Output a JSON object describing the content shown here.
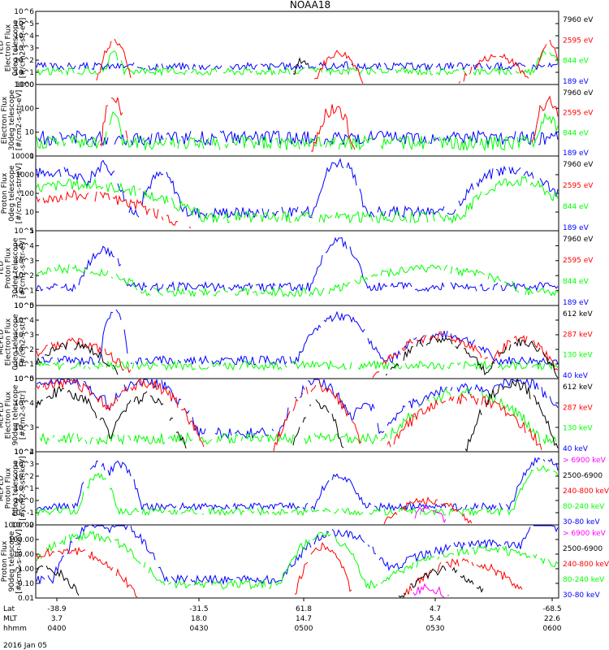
{
  "title": "NOAA18",
  "date_label": "2016 Jan 05",
  "colors": {
    "black": "#000000",
    "red": "#ff0000",
    "green": "#00ff00",
    "blue": "#0000ff",
    "magenta": "#ff00ff"
  },
  "xaxis": {
    "row_labels": [
      "Lat",
      "MLT",
      "hhmm"
    ],
    "ticks": [
      {
        "lat": "-38.9",
        "mlt": "3.7",
        "hhmm": "0400"
      },
      {
        "lat": "-31.5",
        "mlt": "18.0",
        "hhmm": "0430"
      },
      {
        "lat": "61.8",
        "mlt": "14.7",
        "hhmm": "0500"
      },
      {
        "lat": "4.7",
        "mlt": "5.4",
        "hhmm": "0530"
      },
      {
        "lat": "-68.5",
        "mlt": "22.6",
        "hhmm": "0600"
      }
    ]
  },
  "chart_data": [
    {
      "type": "line",
      "ylog": true,
      "ylim": [
        1,
        1000000
      ],
      "yticks": [
        "10^0",
        "10^1",
        "10^2",
        "10^3",
        "10^4",
        "10^5",
        "10^6"
      ],
      "ylabel": [
        "TED",
        "Electron Flux",
        "0deg telescope",
        "[#/cm2-s-str-eV]"
      ],
      "legend": [
        {
          "name": "7960 eV",
          "color": "black"
        },
        {
          "name": "2595 eV",
          "color": "red"
        },
        {
          "name": "844 eV",
          "color": "green"
        },
        {
          "name": "189 eV",
          "color": "blue"
        }
      ],
      "events": [
        {
          "series": "black",
          "center": 0.51,
          "width": 0.01,
          "peak": 100
        },
        {
          "series": "red",
          "center": 0.15,
          "width": 0.012,
          "peak": 3000
        },
        {
          "series": "green",
          "center": 0.15,
          "width": 0.01,
          "peak": 300
        },
        {
          "series": "red",
          "center": 0.58,
          "width": 0.02,
          "peak": 400
        },
        {
          "series": "red",
          "center": 0.88,
          "width": 0.03,
          "peak": 200
        },
        {
          "series": "red",
          "center": 0.98,
          "width": 0.01,
          "peak": 3000
        },
        {
          "series": "green",
          "center": 0.98,
          "width": 0.015,
          "peak": 500
        },
        {
          "series": "blue",
          "center": 0.59,
          "width": 0.01,
          "peak": 50
        }
      ]
    },
    {
      "type": "line",
      "ylog": true,
      "ylim": [
        1,
        1000
      ],
      "yticks": [
        "1",
        "10",
        "100",
        "1000"
      ],
      "ylabel": [
        "Electron Flux",
        "30deg telescope",
        "[#/cm2-s-str-eV]"
      ],
      "legend": [
        {
          "name": "7960 eV",
          "color": "black"
        },
        {
          "name": "2595 eV",
          "color": "red"
        },
        {
          "name": "844 eV",
          "color": "green"
        },
        {
          "name": "189 eV",
          "color": "blue"
        }
      ],
      "events": [
        {
          "series": "red",
          "center": 0.15,
          "width": 0.012,
          "peak": 300
        },
        {
          "series": "green",
          "center": 0.15,
          "width": 0.01,
          "peak": 60
        },
        {
          "series": "red",
          "center": 0.57,
          "width": 0.02,
          "peak": 100
        },
        {
          "series": "red",
          "center": 0.98,
          "width": 0.015,
          "peak": 200
        },
        {
          "series": "green",
          "center": 0.98,
          "width": 0.015,
          "peak": 50
        }
      ]
    },
    {
      "type": "line",
      "ylog": true,
      "ylim": [
        1,
        10000
      ],
      "yticks": [
        "1",
        "10",
        "100",
        "1000",
        "10000"
      ],
      "ylabel": [
        "Proton Flux",
        "0deg telescope",
        "[#/cm2-s-str-eV]"
      ],
      "legend": [
        {
          "name": "7960 eV",
          "color": "black"
        },
        {
          "name": "2595 eV",
          "color": "red"
        },
        {
          "name": "844 eV",
          "color": "green"
        },
        {
          "name": "189 eV",
          "color": "blue"
        }
      ],
      "events": [
        {
          "series": "blue",
          "center": 0.03,
          "width": 0.06,
          "peak": 1500
        },
        {
          "series": "blue",
          "center": 0.13,
          "width": 0.02,
          "peak": 3000
        },
        {
          "series": "blue",
          "center": 0.24,
          "width": 0.02,
          "peak": 1000
        },
        {
          "series": "blue",
          "center": 0.58,
          "width": 0.02,
          "peak": 5000
        },
        {
          "series": "blue",
          "center": 0.91,
          "width": 0.05,
          "peak": 2000
        },
        {
          "series": "green",
          "center": 0.08,
          "width": 0.12,
          "peak": 300
        },
        {
          "series": "green",
          "center": 0.92,
          "width": 0.05,
          "peak": 500
        },
        {
          "series": "red",
          "center": 0.08,
          "width": 0.1,
          "peak": 80
        }
      ]
    },
    {
      "type": "line",
      "ylog": true,
      "ylim": [
        1,
        100000
      ],
      "yticks": [
        "10^0",
        "10^1",
        "10^2",
        "10^3",
        "10^4",
        "10^5"
      ],
      "ylabel": [
        "TED",
        "Proton Flux",
        "30deg telescope",
        "[#/cm2-s-str-eV]"
      ],
      "legend": [
        {
          "name": "7960 eV",
          "color": "black"
        },
        {
          "name": "2595 eV",
          "color": "red"
        },
        {
          "name": "844 eV",
          "color": "green"
        },
        {
          "name": "189 eV",
          "color": "blue"
        }
      ],
      "events": [
        {
          "series": "blue",
          "center": 0.13,
          "width": 0.02,
          "peak": 5000
        },
        {
          "series": "blue",
          "center": 0.58,
          "width": 0.02,
          "peak": 20000
        },
        {
          "series": "green",
          "center": 0.06,
          "width": 0.08,
          "peak": 300
        },
        {
          "series": "green",
          "center": 0.75,
          "width": 0.1,
          "peak": 300
        }
      ]
    },
    {
      "type": "line",
      "ylog": true,
      "ylim": [
        1,
        100000
      ],
      "yticks": [
        "10^0",
        "10^1",
        "10^2",
        "10^3",
        "10^4",
        "10^5"
      ],
      "ylabel": [
        "MEPED",
        "Electron Flux",
        "0deg telescope",
        "[#/cm2-s-str]"
      ],
      "legend": [
        {
          "name": "612 keV",
          "color": "black"
        },
        {
          "name": "287 keV",
          "color": "red"
        },
        {
          "name": "130 keV",
          "color": "green"
        },
        {
          "name": "40 keV",
          "color": "blue"
        }
      ],
      "events": [
        {
          "series": "black",
          "center": 0.07,
          "width": 0.04,
          "peak": 200
        },
        {
          "series": "red",
          "center": 0.07,
          "width": 0.05,
          "peak": 300
        },
        {
          "series": "blue",
          "center": 0.15,
          "width": 0.01,
          "peak": 50000
        },
        {
          "series": "blue",
          "center": 0.58,
          "width": 0.03,
          "peak": 20000
        },
        {
          "series": "black",
          "center": 0.77,
          "width": 0.04,
          "peak": 500
        },
        {
          "series": "red",
          "center": 0.77,
          "width": 0.05,
          "peak": 800
        },
        {
          "series": "blue",
          "center": 0.78,
          "width": 0.05,
          "peak": 1000
        },
        {
          "series": "black",
          "center": 0.93,
          "width": 0.03,
          "peak": 300
        },
        {
          "series": "red",
          "center": 0.93,
          "width": 0.03,
          "peak": 500
        }
      ]
    },
    {
      "type": "line",
      "ylog": true,
      "ylim": [
        10,
        100000
      ],
      "yticks": [
        "10^2",
        "10^3",
        "10^4",
        "10^5"
      ],
      "ylabel": [
        "MEPED",
        "Electron Flux",
        "90deg telescope",
        "[#/cm2-s-str]"
      ],
      "legend": [
        {
          "name": "612 keV",
          "color": "black"
        },
        {
          "name": "287 keV",
          "color": "red"
        },
        {
          "name": "130 keV",
          "color": "green"
        },
        {
          "name": "40 keV",
          "color": "blue"
        }
      ],
      "events": [
        {
          "series": "blue",
          "center": 0.05,
          "width": 0.05,
          "peak": 90000
        },
        {
          "series": "red",
          "center": 0.05,
          "width": 0.05,
          "peak": 60000
        },
        {
          "series": "black",
          "center": 0.05,
          "width": 0.04,
          "peak": 20000
        },
        {
          "series": "blue",
          "center": 0.21,
          "width": 0.04,
          "peak": 80000
        },
        {
          "series": "red",
          "center": 0.21,
          "width": 0.04,
          "peak": 50000
        },
        {
          "series": "black",
          "center": 0.21,
          "width": 0.03,
          "peak": 10000
        },
        {
          "series": "blue",
          "center": 0.54,
          "width": 0.03,
          "peak": 60000
        },
        {
          "series": "red",
          "center": 0.54,
          "width": 0.03,
          "peak": 40000
        },
        {
          "series": "black",
          "center": 0.54,
          "width": 0.02,
          "peak": 5000
        },
        {
          "series": "blue",
          "center": 0.63,
          "width": 0.015,
          "peak": 5000
        },
        {
          "series": "green",
          "center": 0.82,
          "width": 0.06,
          "peak": 20000
        },
        {
          "series": "blue",
          "center": 0.82,
          "width": 0.07,
          "peak": 30000
        },
        {
          "series": "red",
          "center": 0.82,
          "width": 0.06,
          "peak": 8000
        },
        {
          "series": "black",
          "center": 0.91,
          "width": 0.03,
          "peak": 60000
        },
        {
          "series": "blue",
          "center": 0.92,
          "width": 0.04,
          "peak": 90000
        }
      ]
    },
    {
      "type": "line",
      "ylog": true,
      "ylim": [
        0.01,
        10000
      ],
      "yticks": [
        "10^-2",
        "10^-1",
        "10^0",
        "10^1",
        "10^2",
        "10^3",
        "10^4"
      ],
      "ylabel": [
        "MEPED",
        "Proton Flux",
        "0deg telescope",
        "[#/cm2-s-str-keV]"
      ],
      "legend": [
        {
          "name": "> 6900 keV",
          "color": "magenta"
        },
        {
          "name": "2500-6900",
          "color": "black"
        },
        {
          "name": "240-800 keV",
          "color": "red"
        },
        {
          "name": "80-240 keV",
          "color": "green"
        },
        {
          "name": "30-80 keV",
          "color": "blue"
        }
      ],
      "events": [
        {
          "series": "blue",
          "center": 0.12,
          "width": 0.015,
          "peak": 1000
        },
        {
          "series": "blue",
          "center": 0.16,
          "width": 0.015,
          "peak": 1000
        },
        {
          "series": "green",
          "center": 0.12,
          "width": 0.015,
          "peak": 100
        },
        {
          "series": "blue",
          "center": 0.58,
          "width": 0.02,
          "peak": 100
        },
        {
          "series": "magenta",
          "center": 0.75,
          "width": 0.02,
          "peak": 0.3
        },
        {
          "series": "red",
          "center": 0.75,
          "width": 0.04,
          "peak": 1
        },
        {
          "series": "blue",
          "center": 0.97,
          "width": 0.02,
          "peak": 3000
        },
        {
          "series": "green",
          "center": 0.97,
          "width": 0.02,
          "peak": 500
        }
      ]
    },
    {
      "type": "line",
      "ylog": true,
      "ylim": [
        0.01,
        1000
      ],
      "yticks": [
        "0.01",
        "0.10",
        "1.00",
        "10.00",
        "100.00",
        "1000.00"
      ],
      "ylabel": [
        "Proton Flux",
        "90deg telescope",
        "[#/cm2-s-str-keV]"
      ],
      "legend": [
        {
          "name": "> 6900 keV",
          "color": "magenta"
        },
        {
          "name": "2500-6900",
          "color": "black"
        },
        {
          "name": "240-800 keV",
          "color": "red"
        },
        {
          "name": "80-240 keV",
          "color": "green"
        },
        {
          "name": "30-80 keV",
          "color": "blue"
        }
      ],
      "events": [
        {
          "series": "blue",
          "center": 0.12,
          "width": 0.03,
          "peak": 1000
        },
        {
          "series": "blue",
          "center": 0.16,
          "width": 0.03,
          "peak": 800
        },
        {
          "series": "green",
          "center": 0.1,
          "width": 0.05,
          "peak": 200
        },
        {
          "series": "red",
          "center": 0.06,
          "width": 0.05,
          "peak": 20
        },
        {
          "series": "black",
          "center": 0.02,
          "width": 0.03,
          "peak": 1
        },
        {
          "series": "blue",
          "center": 0.58,
          "width": 0.04,
          "peak": 300
        },
        {
          "series": "green",
          "center": 0.55,
          "width": 0.03,
          "peak": 200
        },
        {
          "series": "red",
          "center": 0.55,
          "width": 0.02,
          "peak": 30
        },
        {
          "series": "blue",
          "center": 0.86,
          "width": 0.09,
          "peak": 50
        },
        {
          "series": "green",
          "center": 0.86,
          "width": 0.09,
          "peak": 20
        },
        {
          "series": "red",
          "center": 0.82,
          "width": 0.05,
          "peak": 3
        },
        {
          "series": "black",
          "center": 0.78,
          "width": 0.04,
          "peak": 0.8
        },
        {
          "series": "magenta",
          "center": 0.75,
          "width": 0.03,
          "peak": 0.05
        },
        {
          "series": "blue",
          "center": 0.97,
          "width": 0.02,
          "peak": 3000
        }
      ]
    }
  ]
}
